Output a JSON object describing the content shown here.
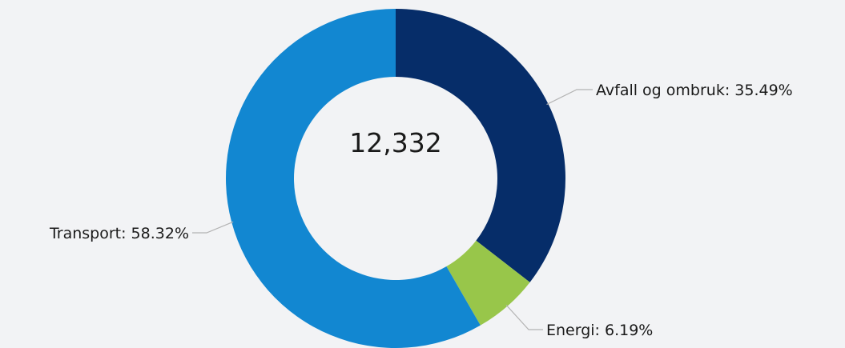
{
  "chart_data": {
    "type": "pie",
    "donut": true,
    "center_total": "12,332",
    "slices": [
      {
        "name": "Avfall og ombruk",
        "value": 35.49,
        "label": "Avfall og ombruk: 35.49%",
        "color": "#062d69"
      },
      {
        "name": "Energi",
        "value": 6.19,
        "label": "Energi: 6.19%",
        "color": "#98c64a"
      },
      {
        "name": "Transport",
        "value": 58.32,
        "label": "Transport: 58.32%",
        "color": "#1287d1"
      }
    ],
    "start_angle_deg": 0,
    "direction": "clockwise",
    "background": "#f2f3f5"
  }
}
